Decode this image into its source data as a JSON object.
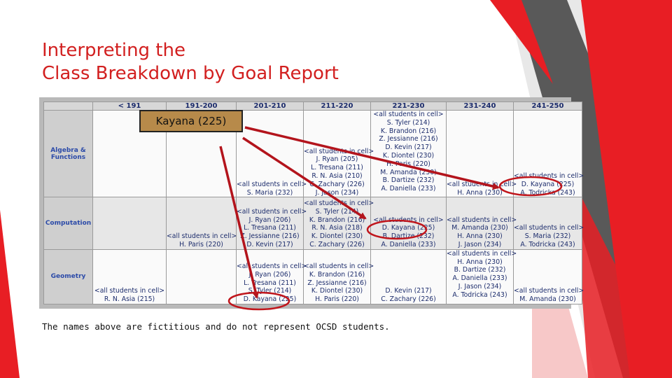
{
  "title_line1": "Interpreting the",
  "title_line2": "Class Breakdown by Goal Report",
  "callout": "Kayana (225)",
  "footnote": "The names above are fictitious and do not represent OCSD students.",
  "colors": {
    "accent_red": "#d21f1f",
    "arrow_red": "#b3141c",
    "header_blue": "#1c2c6c"
  },
  "table": {
    "headers": [
      "",
      "< 191",
      "191-200",
      "201-210",
      "211-220",
      "221-230",
      "231-240",
      "241-250"
    ],
    "rows": [
      {
        "label": "Algebra & Functions",
        "cells": [
          [],
          [],
          [
            "<all students in cell>",
            "S. Maria (232)"
          ],
          [
            "<all students in cell>",
            "J. Ryan (205)",
            "L. Tresana (211)",
            "R. N. Asia (210)",
            "C. Zachary (226)",
            "J. Jason (234)"
          ],
          [
            "<all students in cell>",
            "S. Tyler (214)",
            "K. Brandon (216)",
            "Z. Jessianne (216)",
            "D. Kevin (217)",
            "K. Diontel (230)",
            "H. Paris (220)",
            "M. Amanda (230)",
            "B. Dartize (232)",
            "A. Daniella (233)"
          ],
          [
            "<all students in cell>",
            "H. Anna (230)"
          ],
          [
            "<all students in cell>",
            "D. Kayana (225)",
            "A. Todricka (243)"
          ]
        ]
      },
      {
        "label": "Computation",
        "cells": [
          [],
          [
            "<all students in cell>",
            "H. Paris (220)"
          ],
          [
            "<all students in cell>",
            "J. Ryan (206)",
            "L. Tresana (211)",
            "Z. Jessianne (216)",
            "D. Kevin (217)"
          ],
          [
            "<all students in cell>",
            "S. Tyler (214)",
            "K. Brandon (216)",
            "R. N. Asia (218)",
            "K. Diontel (230)",
            "C. Zachary (226)"
          ],
          [
            "<all students in cell>",
            "D. Kayana (225)",
            "B. Dartize (232)",
            "A. Daniella (233)"
          ],
          [
            "<all students in cell>",
            "M. Amanda (230)",
            "H. Anna (230)",
            "J. Jason (234)"
          ],
          [
            "<all students in cell>",
            "S. Maria (232)",
            "A. Todricka (243)"
          ]
        ]
      },
      {
        "label": "Geometry",
        "cells": [
          [
            "<all students in cell>",
            "R. N. Asia (215)"
          ],
          [],
          [
            "<all students in cell>",
            "J. Ryan (206)",
            "L. Tresana (211)",
            "S. Tyler (214)",
            "D. Kayana (225)"
          ],
          [
            "<all students in cell>",
            "K. Brandon (216)",
            "Z. Jessianne (216)",
            "K. Diontel (230)",
            "H. Paris (220)"
          ],
          [
            "D. Kevin (217)",
            "C. Zachary (226)"
          ],
          [
            "<all students in cell>",
            "H. Anna (230)",
            "B. Dartize (232)",
            "A. Daniella (233)",
            "J. Jason (234)",
            "A. Todricka (243)"
          ],
          [
            "<all students in cell>",
            "M. Amanda (230)"
          ]
        ]
      }
    ]
  }
}
